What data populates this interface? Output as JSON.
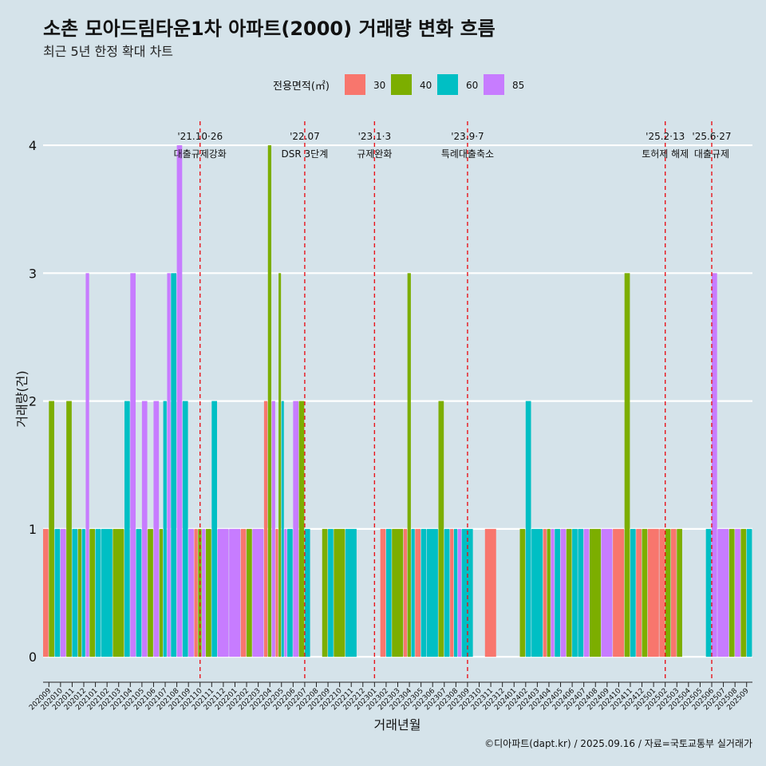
{
  "chart_data": {
    "type": "bar",
    "title": "소촌 모아드림타운1차 아파트(2000) 거래량 변화 흐름",
    "subtitle": "최근 5년 한정 확대 차트",
    "xlabel": "거래년월",
    "ylabel": "거래량(건)",
    "ylim": [
      -0.18,
      4.2
    ],
    "yticks": [
      0,
      1,
      2,
      3,
      4
    ],
    "grid": "horizontal",
    "legend": {
      "title": "전용면적(㎡)",
      "placement": "top"
    },
    "colors": {
      "30": "#f8766d",
      "40": "#7cae00",
      "60": "#00bfc4",
      "85": "#c77cff"
    },
    "categories": [
      "202009",
      "202010",
      "202011",
      "202012",
      "202101",
      "202102",
      "202103",
      "202104",
      "202105",
      "202106",
      "202107",
      "202108",
      "202109",
      "202110",
      "202111",
      "202112",
      "202201",
      "202202",
      "202203",
      "202204",
      "202205",
      "202206",
      "202207",
      "202208",
      "202209",
      "202210",
      "202211",
      "202212",
      "202301",
      "202302",
      "202303",
      "202304",
      "202305",
      "202306",
      "202307",
      "202308",
      "202309",
      "202310",
      "202311",
      "202312",
      "202401",
      "202402",
      "202403",
      "202404",
      "202405",
      "202406",
      "202407",
      "202408",
      "202409",
      "202410",
      "202411",
      "202412",
      "202501",
      "202502",
      "202503",
      "202504",
      "202505",
      "202506",
      "202507",
      "202508",
      "202509"
    ],
    "xtick_labels": [
      "202009",
      "202010",
      "202011",
      "202012",
      "202101",
      "202102",
      "202103",
      "202104",
      "202105",
      "202106",
      "202107",
      "202108",
      "202109",
      "202110",
      "202111",
      "202112",
      "202201",
      "202202",
      "202203",
      "202204",
      "202205",
      "202206",
      "202207",
      "202208",
      "202209",
      "202210",
      "202211",
      "202212",
      "202301",
      "202302",
      "202303",
      "202304",
      "202305",
      "202306",
      "202307",
      "202308",
      "202309",
      "202310",
      "202311",
      "202312",
      "202401",
      "202402",
      "202403",
      "202404",
      "202405",
      "202406",
      "202407",
      "202408",
      "202409",
      "202410",
      "202411",
      "202412",
      "202501",
      "202502",
      "202503",
      "202504",
      "202505",
      "202506",
      "202507",
      "202508",
      "202509"
    ],
    "series": [
      {
        "name": "30",
        "values": [
          1,
          0,
          0,
          0,
          0,
          0,
          0,
          0,
          0,
          0,
          0,
          0,
          0,
          1,
          0,
          0,
          0,
          1,
          0,
          2,
          1,
          0,
          0,
          0,
          0,
          0,
          0,
          0,
          0,
          1,
          0,
          1,
          1,
          0,
          0,
          1,
          0,
          0,
          1,
          0,
          0,
          0,
          0,
          1,
          0,
          0,
          0,
          0,
          0,
          1,
          0,
          1,
          1,
          1,
          1,
          0,
          0,
          0,
          0,
          0,
          0
        ]
      },
      {
        "name": "40",
        "values": [
          2,
          0,
          2,
          1,
          1,
          0,
          1,
          0,
          0,
          1,
          1,
          0,
          0,
          1,
          1,
          0,
          0,
          1,
          0,
          4,
          3,
          0,
          2,
          0,
          1,
          1,
          0,
          0,
          0,
          0,
          1,
          3,
          0,
          0,
          2,
          0,
          0,
          0,
          0,
          0,
          0,
          1,
          0,
          1,
          0,
          1,
          0,
          1,
          0,
          0,
          3,
          1,
          0,
          1,
          1,
          0,
          0,
          0,
          0,
          1,
          1
        ]
      },
      {
        "name": "60",
        "values": [
          0,
          1,
          1,
          1,
          1,
          1,
          0,
          2,
          1,
          0,
          2,
          3,
          2,
          0,
          2,
          0,
          0,
          0,
          0,
          0,
          2,
          1,
          1,
          0,
          1,
          0,
          1,
          0,
          0,
          1,
          0,
          1,
          1,
          1,
          1,
          1,
          1,
          0,
          0,
          0,
          0,
          2,
          1,
          0,
          1,
          1,
          1,
          0,
          0,
          0,
          1,
          0,
          0,
          0,
          0,
          0,
          0,
          1,
          0,
          0,
          1
        ]
      },
      {
        "name": "85",
        "values": [
          0,
          1,
          0,
          3,
          0,
          0,
          0,
          3,
          2,
          2,
          3,
          4,
          1,
          1,
          0,
          1,
          1,
          0,
          1,
          2,
          1,
          2,
          0,
          0,
          0,
          0,
          0,
          0,
          0,
          0,
          0,
          0,
          0,
          0,
          0,
          1,
          0,
          0,
          0,
          0,
          0,
          0,
          0,
          1,
          1,
          0,
          1,
          0,
          1,
          0,
          0,
          0,
          0,
          0,
          0,
          0,
          0,
          3,
          1,
          1,
          0
        ]
      }
    ],
    "events": [
      {
        "category": "202110",
        "date": "'21.10·26",
        "label": "대출규제강화"
      },
      {
        "category": "202207",
        "date": "'22.07",
        "label": "DSR 3단계"
      },
      {
        "category": "202301",
        "date": "'23.1·3",
        "label": "규제완화"
      },
      {
        "category": "202309",
        "date": "'23.9·7",
        "label": "특례대출축소"
      },
      {
        "category": "202502",
        "date": "'25.2·13",
        "label": "토허제 해제"
      },
      {
        "category": "202506",
        "date": "'25.6·27",
        "label": "대출규제"
      }
    ],
    "caption": "©디아파트(dapt.kr) / 2025.09.16 / 자료=국토교통부 실거래가"
  }
}
